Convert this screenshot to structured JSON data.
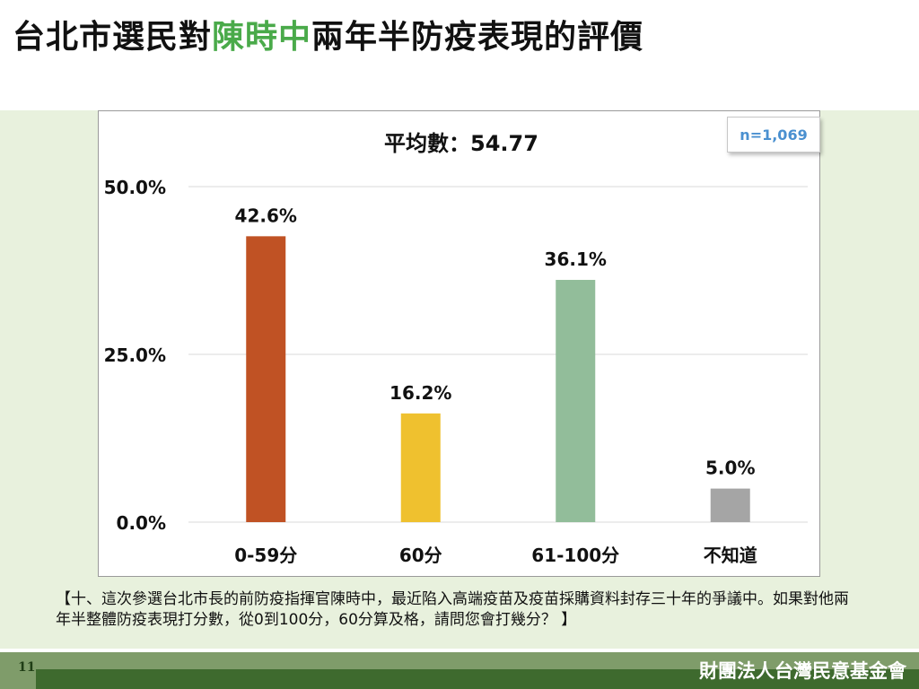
{
  "header": {
    "title_prefix": "台北市選民對",
    "title_highlight": "陳時中",
    "title_suffix": "兩年半防疫表現的評價"
  },
  "chart_data": {
    "type": "bar",
    "title": "平均數：54.77",
    "sample_label": "n=1,069",
    "categories": [
      "0-59分",
      "60分",
      "61-100分",
      "不知道"
    ],
    "values": [
      42.6,
      16.2,
      36.1,
      5.0
    ],
    "value_labels": [
      "42.6%",
      "16.2%",
      "36.1%",
      "5.0%"
    ],
    "colors": [
      "#c05224",
      "#efc12f",
      "#92bd9a",
      "#a5a5a5"
    ],
    "ylim": [
      0,
      50
    ],
    "y_ticks": [
      0,
      25,
      50
    ],
    "y_tick_labels": [
      "0.0%",
      "25.0%",
      "50.0%"
    ],
    "grid": true,
    "xlabel": "",
    "ylabel": ""
  },
  "question": "【十、這次參選台北市長的前防疫指揮官陳時中，最近陷入高端疫苗及疫苗採購資料封存三十年的爭議中。如果對他兩年半整體防疫表現打分數，從0到100分，60分算及格，請問您會打幾分？ 】",
  "footer": {
    "page_number": "11",
    "organization": "財團法人台灣民意基金會"
  }
}
